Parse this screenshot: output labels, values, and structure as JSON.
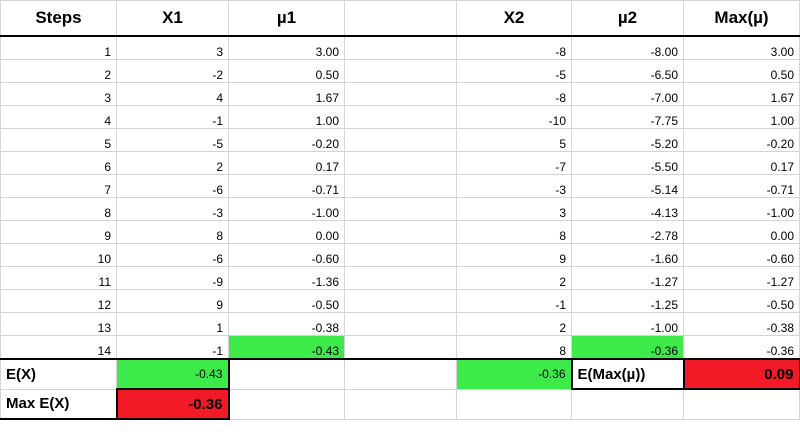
{
  "headers": [
    "Steps",
    "X1",
    "µ1",
    "",
    "X2",
    "µ2",
    "Max(µ)"
  ],
  "rows": [
    {
      "step": "1",
      "x1": "3",
      "mu1": "3.00",
      "x2": "-8",
      "mu2": "-8.00",
      "max": "3.00"
    },
    {
      "step": "2",
      "x1": "-2",
      "mu1": "0.50",
      "x2": "-5",
      "mu2": "-6.50",
      "max": "0.50"
    },
    {
      "step": "3",
      "x1": "4",
      "mu1": "1.67",
      "x2": "-8",
      "mu2": "-7.00",
      "max": "1.67"
    },
    {
      "step": "4",
      "x1": "-1",
      "mu1": "1.00",
      "x2": "-10",
      "mu2": "-7.75",
      "max": "1.00"
    },
    {
      "step": "5",
      "x1": "-5",
      "mu1": "-0.20",
      "x2": "5",
      "mu2": "-5.20",
      "max": "-0.20"
    },
    {
      "step": "6",
      "x1": "2",
      "mu1": "0.17",
      "x2": "-7",
      "mu2": "-5.50",
      "max": "0.17"
    },
    {
      "step": "7",
      "x1": "-6",
      "mu1": "-0.71",
      "x2": "-3",
      "mu2": "-5.14",
      "max": "-0.71"
    },
    {
      "step": "8",
      "x1": "-3",
      "mu1": "-1.00",
      "x2": "3",
      "mu2": "-4.13",
      "max": "-1.00"
    },
    {
      "step": "9",
      "x1": "8",
      "mu1": "0.00",
      "x2": "8",
      "mu2": "-2.78",
      "max": "0.00"
    },
    {
      "step": "10",
      "x1": "-6",
      "mu1": "-0.60",
      "x2": "9",
      "mu2": "-1.60",
      "max": "-0.60"
    },
    {
      "step": "11",
      "x1": "-9",
      "mu1": "-1.36",
      "x2": "2",
      "mu2": "-1.27",
      "max": "-1.27"
    },
    {
      "step": "12",
      "x1": "9",
      "mu1": "-0.50",
      "x2": "-1",
      "mu2": "-1.25",
      "max": "-0.50"
    },
    {
      "step": "13",
      "x1": "1",
      "mu1": "-0.38",
      "x2": "2",
      "mu2": "-1.00",
      "max": "-0.38"
    },
    {
      "step": "14",
      "x1": "-1",
      "mu1": "-0.43",
      "x2": "8",
      "mu2": "-0.36",
      "max": "-0.36"
    }
  ],
  "footer": {
    "ex_label": "E(X)",
    "ex_x1": "-0.43",
    "ex_x2": "-0.36",
    "emax_label": "E(Max(µ))",
    "emax_value": "0.09",
    "maxex_label": "Max E(X)",
    "maxex_value": "-0.36"
  },
  "colors": {
    "green_highlight": "#3eea4a",
    "red_highlight": "#f21a26",
    "gridline": "#d4d4d4"
  }
}
